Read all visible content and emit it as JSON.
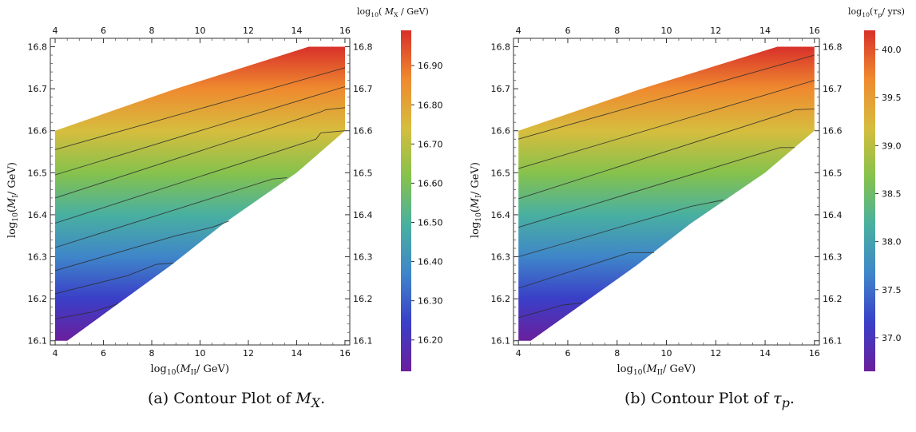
{
  "chart_data": [
    {
      "type": "heatmap",
      "subtype": "contour",
      "panel": "(a)",
      "caption_prefix": "(a) Contour Plot of ",
      "caption_math": "M",
      "caption_math_sub": "X",
      "caption_suffix": ".",
      "xlabel": "log10(MII/GeV)",
      "xlabel_parts": {
        "pre": "log",
        "pre_sub": "10",
        "open": "(",
        "var": "M",
        "var_sub": "II",
        "post": "/ GeV)"
      },
      "ylabel": "log10(MI/GeV)",
      "ylabel_parts": {
        "pre": "log",
        "pre_sub": "10",
        "open": "(",
        "var": "M",
        "var_sub": "I",
        "post": "/ GeV)"
      },
      "colorbar_title": "log10(MX / GeV)",
      "colorbar_title_parts": {
        "pre": "log",
        "pre_sub": "10",
        "open": "( ",
        "var": "M",
        "var_sub": "X",
        "post": " / GeV)"
      },
      "x_ticks": [
        "4",
        "6",
        "8",
        "10",
        "12",
        "14",
        "16"
      ],
      "y_ticks": [
        "16.1",
        "16.2",
        "16.3",
        "16.4",
        "16.5",
        "16.6",
        "16.7",
        "16.8"
      ],
      "xlim": [
        3.8,
        16.2
      ],
      "ylim": [
        16.09,
        16.82
      ],
      "colorbar_ticks": [
        "16.20",
        "16.30",
        "16.40",
        "16.50",
        "16.60",
        "16.70",
        "16.80",
        "16.90"
      ],
      "colorbar_range": [
        16.12,
        16.99
      ],
      "color_scale": "rainbow",
      "colors": [
        "#6a1f9c",
        "#3a3fc8",
        "#3f86c9",
        "#49b0a0",
        "#86c24c",
        "#d6bd3e",
        "#ef8a2f",
        "#d8302a"
      ],
      "region": [
        [
          4,
          16.6
        ],
        [
          9,
          16.7
        ],
        [
          14.5,
          16.8
        ],
        [
          16,
          16.8
        ],
        [
          16,
          16.6
        ],
        [
          14,
          16.5
        ],
        [
          11,
          16.38
        ],
        [
          8.8,
          16.28
        ],
        [
          4.5,
          16.1
        ],
        [
          4,
          16.1
        ]
      ],
      "contours": [
        [
          [
            4,
            16.555
          ],
          [
            16,
            16.75
          ]
        ],
        [
          [
            4,
            16.495
          ],
          [
            16,
            16.705
          ]
        ],
        [
          [
            4,
            16.44
          ],
          [
            15,
            16.645
          ],
          [
            15.2,
            16.65
          ],
          [
            16,
            16.655
          ]
        ],
        [
          [
            4,
            16.38
          ],
          [
            14.8,
            16.58
          ],
          [
            15,
            16.595
          ],
          [
            16,
            16.6
          ]
        ],
        [
          [
            4,
            16.322
          ],
          [
            13,
            16.485
          ],
          [
            13.6,
            16.488
          ]
        ],
        [
          [
            4,
            16.267
          ],
          [
            9,
            16.35
          ],
          [
            10.5,
            16.37
          ],
          [
            11.2,
            16.385
          ]
        ],
        [
          [
            4,
            16.212
          ],
          [
            7,
            16.255
          ],
          [
            8.2,
            16.282
          ],
          [
            8.9,
            16.285
          ]
        ],
        [
          [
            4,
            16.152
          ],
          [
            5.5,
            16.168
          ],
          [
            6.6,
            16.188
          ]
        ]
      ]
    },
    {
      "type": "heatmap",
      "subtype": "contour",
      "panel": "(b)",
      "caption_prefix": "(b) Contour Plot of ",
      "caption_math": "τ",
      "caption_math_sub": "p",
      "caption_suffix": ".",
      "xlabel": "log10(MII/GeV)",
      "xlabel_parts": {
        "pre": "log",
        "pre_sub": "10",
        "open": "(",
        "var": "M",
        "var_sub": "II",
        "post": "/ GeV)"
      },
      "ylabel": "log10(MI/GeV)",
      "ylabel_parts": {
        "pre": "log",
        "pre_sub": "10",
        "open": "(",
        "var": "M",
        "var_sub": "I",
        "post": "/ GeV)"
      },
      "colorbar_title": "log10(τp/ yrs)",
      "colorbar_title_parts": {
        "pre": "log",
        "pre_sub": "10",
        "open": "(",
        "var": "τ",
        "var_sub": "p",
        "post": "/ yrs)"
      },
      "x_ticks": [
        "4",
        "6",
        "8",
        "10",
        "12",
        "14",
        "16"
      ],
      "y_ticks": [
        "16.1",
        "16.2",
        "16.3",
        "16.4",
        "16.5",
        "16.6",
        "16.7",
        "16.8"
      ],
      "xlim": [
        3.8,
        16.2
      ],
      "ylim": [
        16.09,
        16.82
      ],
      "colorbar_ticks": [
        "37.0",
        "37.5",
        "38.0",
        "38.5",
        "39.0",
        "39.5",
        "40.0"
      ],
      "colorbar_range": [
        36.65,
        40.2
      ],
      "color_scale": "rainbow",
      "colors": [
        "#6a1f9c",
        "#3a3fc8",
        "#3f86c9",
        "#49b0a0",
        "#86c24c",
        "#d6bd3e",
        "#ef8a2f",
        "#d8302a"
      ],
      "region": [
        [
          4,
          16.6
        ],
        [
          9,
          16.7
        ],
        [
          14.5,
          16.8
        ],
        [
          16,
          16.8
        ],
        [
          16,
          16.6
        ],
        [
          14,
          16.5
        ],
        [
          11,
          16.38
        ],
        [
          8.8,
          16.28
        ],
        [
          4.5,
          16.1
        ],
        [
          4,
          16.1
        ]
      ],
      "contours": [
        [
          [
            4,
            16.58
          ],
          [
            16,
            16.78
          ]
        ],
        [
          [
            4,
            16.51
          ],
          [
            16,
            16.72
          ]
        ],
        [
          [
            4,
            16.438
          ],
          [
            15,
            16.645
          ],
          [
            15.2,
            16.65
          ],
          [
            16,
            16.652
          ]
        ],
        [
          [
            4,
            16.37
          ],
          [
            14.6,
            16.56
          ],
          [
            15.2,
            16.56
          ]
        ],
        [
          [
            4,
            16.3
          ],
          [
            11,
            16.42
          ],
          [
            12.3,
            16.435
          ]
        ],
        [
          [
            4,
            16.225
          ],
          [
            8.5,
            16.31
          ],
          [
            9.5,
            16.31
          ]
        ],
        [
          [
            4,
            16.155
          ],
          [
            5.8,
            16.185
          ],
          [
            6.6,
            16.19
          ]
        ]
      ]
    }
  ]
}
